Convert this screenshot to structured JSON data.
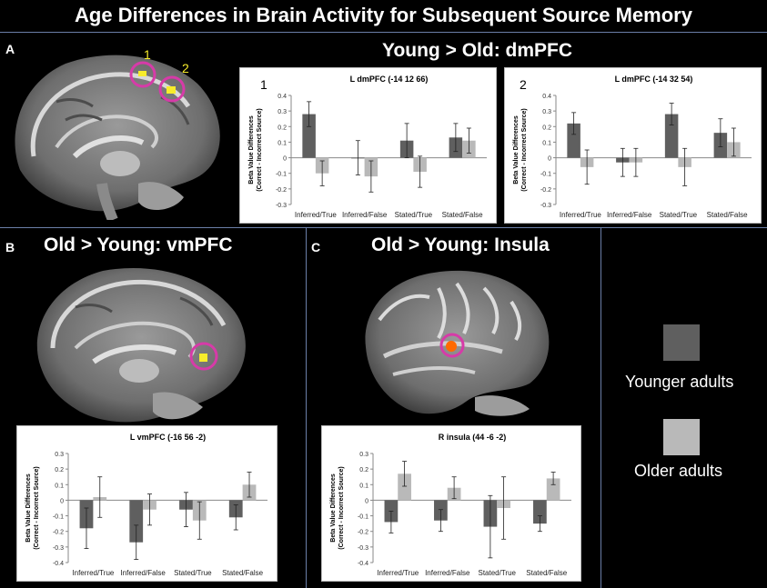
{
  "figure": {
    "title": "Age Differences in Brain Activity for Subsequent Source Memory",
    "panels": {
      "a": {
        "letter": "A",
        "heading": "Young > Old: dmPFC",
        "roi_labels": [
          "1",
          "2"
        ]
      },
      "b": {
        "letter": "B",
        "heading": "Old > Young: vmPFC"
      },
      "c": {
        "letter": "C",
        "heading": "Old > Young: Insula"
      }
    },
    "legend": {
      "items": [
        {
          "label": "Younger adults",
          "color": "#5f5f5f"
        },
        {
          "label": "Older adults",
          "color": "#b9b9b9"
        }
      ]
    },
    "colors": {
      "younger": "#5f5f5f",
      "older": "#b9b9b9",
      "roi_circle": "#d63ba8",
      "activation_yellow": "#f7ec2b",
      "activation_orange": "#ff6a00"
    }
  },
  "chart_data": [
    {
      "id": "c1",
      "type": "bar",
      "panel_number": "1",
      "title": "L dmPFC (-14 12 66)",
      "ylabel": "Beta Value Differences (Correct - Incorrect Source)",
      "ylabel_lines": [
        "Beta Value Differences",
        "(Correct - Incorrect Source)"
      ],
      "ylim": [
        -0.3,
        0.4
      ],
      "yticks": [
        -0.3,
        -0.2,
        -0.1,
        0,
        0.1,
        0.2,
        0.3,
        0.4
      ],
      "categories": [
        "Inferred/True",
        "Inferred/False",
        "Stated/True",
        "Stated/False"
      ],
      "series": [
        {
          "values": [
            0.28,
            0.0,
            0.11,
            0.13
          ],
          "errors": [
            0.08,
            0.11,
            0.11,
            0.09
          ]
        },
        {
          "values": [
            -0.1,
            -0.12,
            -0.09,
            0.11
          ],
          "errors": [
            0.08,
            0.1,
            0.1,
            0.08
          ]
        }
      ]
    },
    {
      "id": "c2",
      "type": "bar",
      "panel_number": "2",
      "title": "L dmPFC (-14 32 54)",
      "ylabel": "Beta Value Differences (Correct - Incorrect Source)",
      "ylabel_lines": [
        "Beta Value Differences",
        "(Correct - Incorrect Source)"
      ],
      "ylim": [
        -0.3,
        0.4
      ],
      "yticks": [
        -0.3,
        -0.2,
        -0.1,
        0,
        0.1,
        0.2,
        0.3,
        0.4
      ],
      "categories": [
        "Inferred/True",
        "Inferred/False",
        "Stated/True",
        "Stated/False"
      ],
      "series": [
        {
          "values": [
            0.22,
            -0.03,
            0.28,
            0.16
          ],
          "errors": [
            0.07,
            0.09,
            0.07,
            0.09
          ]
        },
        {
          "values": [
            -0.06,
            -0.03,
            -0.06,
            0.1
          ],
          "errors": [
            0.11,
            0.09,
            0.12,
            0.09
          ]
        }
      ]
    },
    {
      "id": "c3",
      "type": "bar",
      "title": "L vmPFC (-16 56 -2)",
      "ylabel": "Beta Value Differences (Correct - Incorrect Source)",
      "ylabel_lines": [
        "Beta Value Differences",
        "(Correct - Incorrect Source)"
      ],
      "ylim": [
        -0.4,
        0.3
      ],
      "yticks": [
        -0.4,
        -0.3,
        -0.2,
        -0.1,
        0,
        0.1,
        0.2,
        0.3
      ],
      "categories": [
        "Inferred/True",
        "Inferred/False",
        "Stated/True",
        "Stated/False"
      ],
      "series": [
        {
          "values": [
            -0.18,
            -0.27,
            -0.06,
            -0.11
          ],
          "errors": [
            0.13,
            0.11,
            0.11,
            0.08
          ]
        },
        {
          "values": [
            0.02,
            -0.06,
            -0.13,
            0.1
          ],
          "errors": [
            0.13,
            0.1,
            0.12,
            0.08
          ]
        }
      ]
    },
    {
      "id": "c4",
      "type": "bar",
      "title": "R insula (44 -6 -2)",
      "ylabel": "Beta Value Differences (Correct - Incorrect Source)",
      "ylabel_lines": [
        "Beta Value Differences",
        "(Correct - Incorrect Source)"
      ],
      "ylim": [
        -0.4,
        0.3
      ],
      "yticks": [
        -0.4,
        -0.3,
        -0.2,
        -0.1,
        0,
        0.1,
        0.2,
        0.3
      ],
      "categories": [
        "Inferred/True",
        "Inferred/False",
        "Stated/True",
        "Stated/False"
      ],
      "series": [
        {
          "values": [
            -0.14,
            -0.13,
            -0.17,
            -0.15
          ],
          "errors": [
            0.07,
            0.07,
            0.2,
            0.05
          ]
        },
        {
          "values": [
            0.17,
            0.08,
            -0.05,
            0.14
          ],
          "errors": [
            0.08,
            0.07,
            0.2,
            0.04
          ]
        }
      ]
    }
  ]
}
